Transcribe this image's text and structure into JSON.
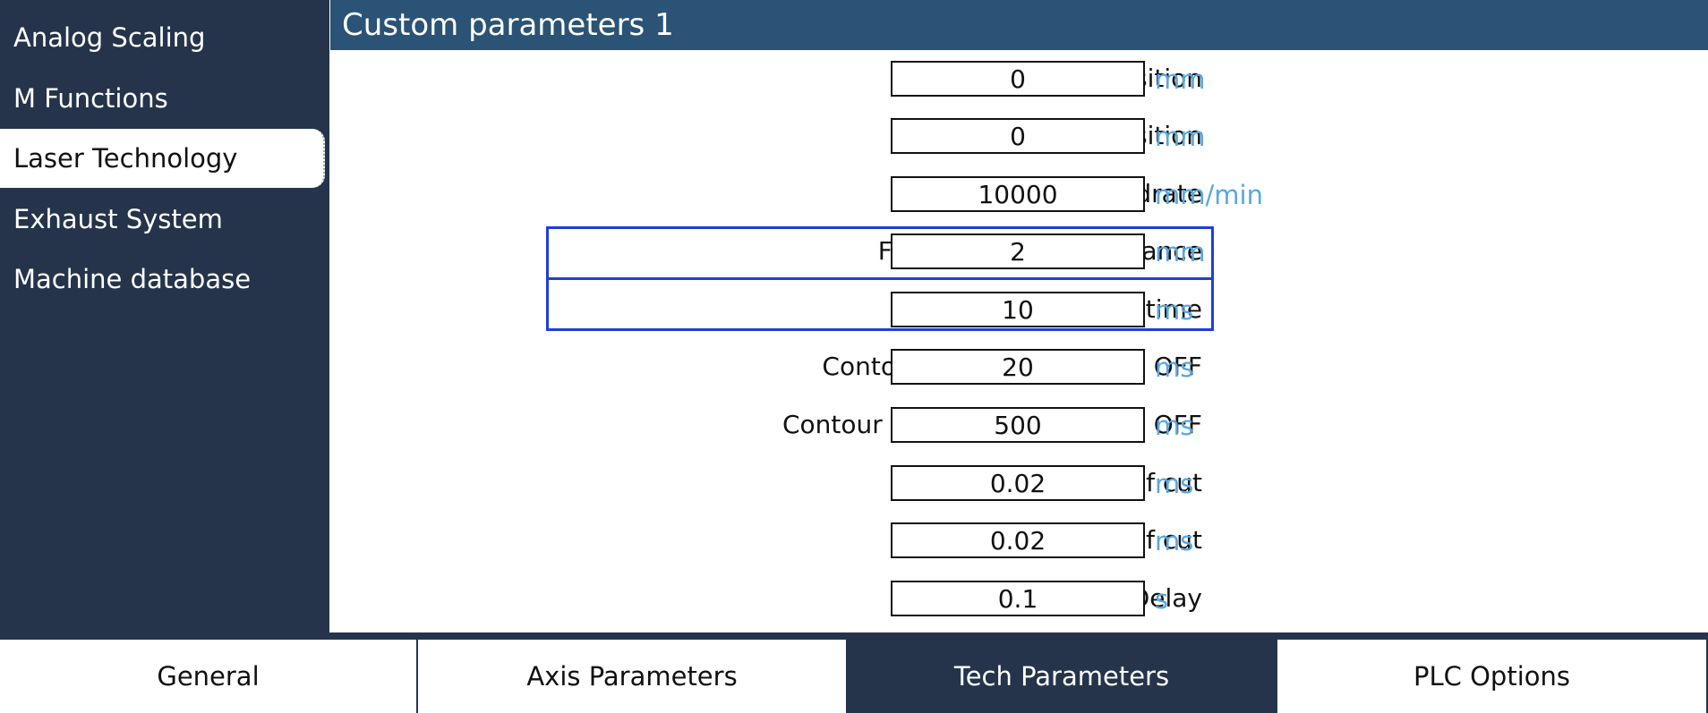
{
  "sidebar": {
    "items": [
      {
        "label": "Analog Scaling"
      },
      {
        "label": "M Functions"
      },
      {
        "label": "Laser Technology",
        "active": true
      },
      {
        "label": "Exhaust System"
      },
      {
        "label": "Machine database"
      }
    ]
  },
  "panel": {
    "title": "Custom parameters 1",
    "params": [
      {
        "label": "X-axis park position",
        "value": "0",
        "unit": "mm"
      },
      {
        "label": "Y-axis park position",
        "value": "0",
        "unit": "mm"
      },
      {
        "label": "Test Run Feedrate",
        "value": "10000",
        "unit": "mm/min"
      },
      {
        "label": "Frog Jump adjust distance",
        "value": "2",
        "unit": "mm",
        "highlighted": true
      },
      {
        "label": "Frog Jump adjust time",
        "value": "10",
        "unit": "ms",
        "highlighted": true
      },
      {
        "label": "Contour End Control Time OFF",
        "value": "20",
        "unit": "ms"
      },
      {
        "label": "Contour End Parameter Time OFF",
        "value": "500",
        "unit": "ms"
      },
      {
        "label": "Delay before start of cut",
        "value": "0.02",
        "unit": "ms"
      },
      {
        "label": "Delay after end of cut",
        "value": "0.02",
        "unit": "ms"
      },
      {
        "label": "Laser HV ON Delay",
        "value": "0.1",
        "unit": "s"
      }
    ]
  },
  "tabs": [
    {
      "label": "General"
    },
    {
      "label": "Axis Parameters"
    },
    {
      "label": "Tech Parameters",
      "active": true
    },
    {
      "label": "PLC Options"
    }
  ],
  "colors": {
    "navy": "#25344b",
    "header_blue": "#2b5376",
    "unit_blue": "#58a7e2",
    "highlight_blue": "#1f3fd6"
  }
}
